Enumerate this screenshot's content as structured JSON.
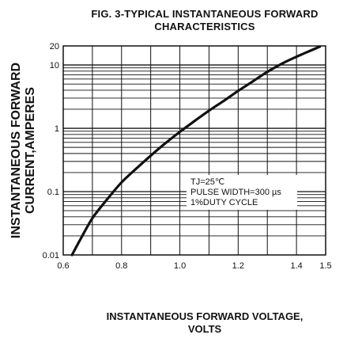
{
  "chart_data": {
    "type": "line",
    "title_line1": "FIG. 3-TYPICAL INSTANTANEOUS FORWARD",
    "title_line2": "CHARACTERISTICS",
    "xlabel_line1": "INSTANTANEOUS FORWARD VOLTAGE,",
    "xlabel_line2": "VOLTS",
    "ylabel_line1": "INSTANTANEOUS FORWARD",
    "ylabel_line2": "CURRENT,AMPERES",
    "x_scale": "linear",
    "y_scale": "log",
    "xlim": [
      0.6,
      1.5
    ],
    "ylim": [
      0.01,
      20
    ],
    "x_ticks": [
      {
        "value": 0.6,
        "label": "0.6"
      },
      {
        "value": 0.8,
        "label": "0.8"
      },
      {
        "value": 1.0,
        "label": "1.0"
      },
      {
        "value": 1.2,
        "label": "1.2"
      },
      {
        "value": 1.4,
        "label": "1.4"
      },
      {
        "value": 1.5,
        "label": "1.5"
      }
    ],
    "y_ticks": [
      {
        "value": 0.01,
        "label": "0.01"
      },
      {
        "value": 0.1,
        "label": "0.1"
      },
      {
        "value": 1,
        "label": "1"
      },
      {
        "value": 10,
        "label": "10"
      },
      {
        "value": 20,
        "label": "20"
      }
    ],
    "grid": true,
    "annotation": [
      "TJ=25℃",
      "PULSE WIDTH=300 µs",
      "1%DUTY CYCLE"
    ],
    "series": [
      {
        "x": [
          0.63,
          0.66,
          0.7,
          0.75,
          0.8,
          0.85,
          0.9,
          0.95,
          1.0,
          1.05,
          1.1,
          1.15,
          1.2,
          1.25,
          1.3,
          1.35,
          1.4,
          1.45,
          1.48
        ],
        "y": [
          0.01,
          0.018,
          0.038,
          0.075,
          0.14,
          0.23,
          0.37,
          0.58,
          0.88,
          1.3,
          1.9,
          2.7,
          3.9,
          5.5,
          7.8,
          10.5,
          13.5,
          17.0,
          19.5
        ]
      }
    ]
  }
}
